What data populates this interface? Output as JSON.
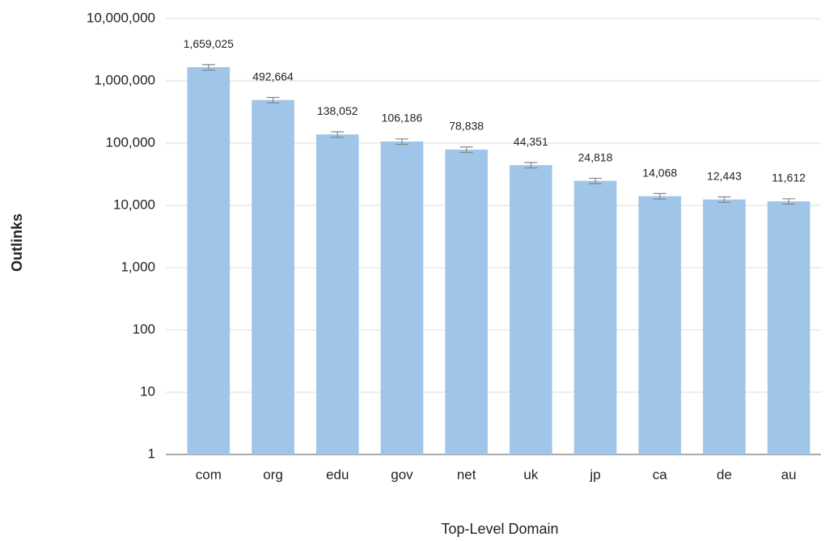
{
  "chart_data": {
    "type": "bar",
    "x_label": "Top-Level Domain",
    "y_label": "Outlinks",
    "categories": [
      "com",
      "org",
      "edu",
      "gov",
      "net",
      "uk",
      "jp",
      "ca",
      "de",
      "au"
    ],
    "values": [
      1659025,
      492664,
      138052,
      106186,
      78838,
      44351,
      24818,
      14068,
      12443,
      11612
    ],
    "value_labels": [
      "1,659,025",
      "492,664",
      "138,052",
      "106,186",
      "78,838",
      "44,351",
      "24,818",
      "14,068",
      "12,443",
      "11,612"
    ],
    "errors": [
      165903,
      49266,
      13805,
      10619,
      7884,
      4435,
      2482,
      1407,
      1244,
      1161
    ],
    "color": "#9fc5e8",
    "error_color": "#888888",
    "log_scale": true,
    "grid": true,
    "ylim": [
      1,
      10000000
    ],
    "yticks": [
      1,
      10,
      100,
      {
        "value": 1000,
        "label": "1,000"
      },
      {
        "value": 10000,
        "label": "10,000"
      },
      {
        "value": 100000,
        "label": "100,000"
      },
      {
        "value": 1000000,
        "label": "1,000,000"
      },
      {
        "value": 10000000,
        "label": "10,000,000"
      }
    ]
  }
}
